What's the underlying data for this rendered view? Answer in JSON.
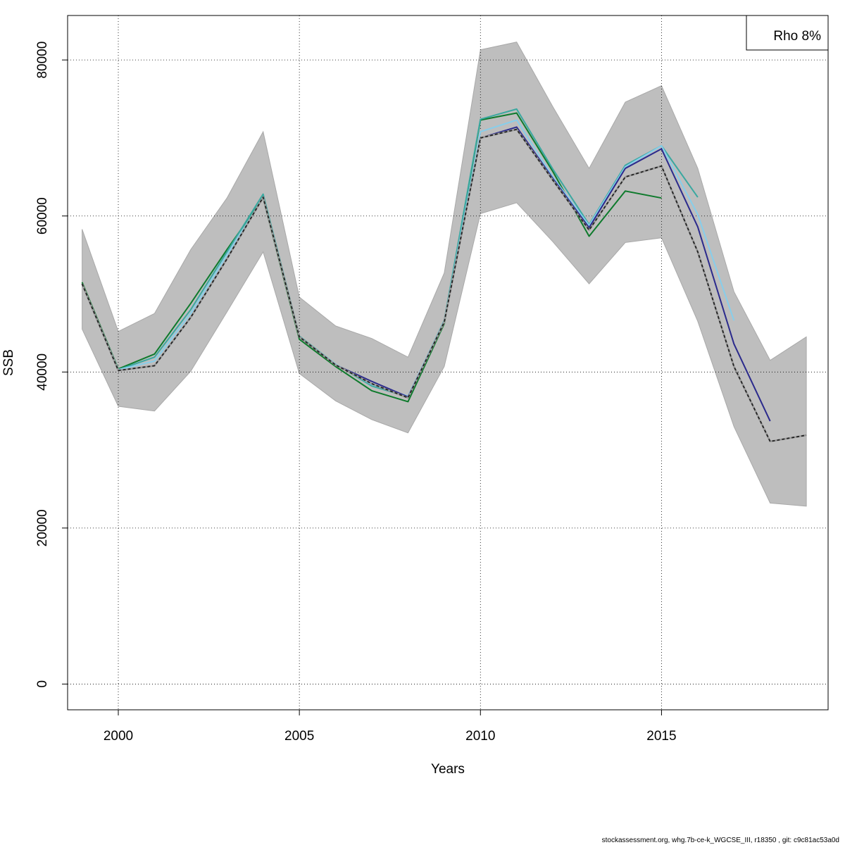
{
  "chart_data": {
    "type": "line",
    "title": "",
    "xlabel": "Years",
    "ylabel": "SSB",
    "xlim": [
      1998.6,
      2019.6
    ],
    "ylim": [
      -3300,
      85700
    ],
    "x_ticks": [
      2000,
      2005,
      2010,
      2015
    ],
    "y_ticks": [
      0,
      20000,
      40000,
      60000,
      80000
    ],
    "grid": true,
    "legend": {
      "position": "top-right",
      "text": "Rho 8%"
    },
    "band": {
      "x": [
        1999,
        2000,
        2001,
        2002,
        2003,
        2004,
        2005,
        2006,
        2007,
        2008,
        2009,
        2010,
        2011,
        2012,
        2013,
        2014,
        2015,
        2016,
        2017,
        2018,
        2019
      ],
      "upper": [
        58300,
        45200,
        47500,
        55700,
        62300,
        70800,
        49600,
        45900,
        44300,
        41900,
        52700,
        81300,
        82300,
        74000,
        66100,
        74600,
        76700,
        66100,
        50300,
        41500,
        44500
      ],
      "lower": [
        45500,
        35600,
        35000,
        40100,
        47700,
        55400,
        39800,
        36300,
        33900,
        32200,
        40700,
        60300,
        61700,
        56700,
        51300,
        56600,
        57200,
        46500,
        33000,
        23200,
        22800
      ]
    },
    "series": [
      {
        "color": "#0e7a2c",
        "x": [
          1999,
          2000,
          2001,
          2002,
          2003,
          2004,
          2005,
          2006,
          2007,
          2008,
          2009,
          2010,
          2011,
          2012,
          2013,
          2014,
          2015
        ],
        "values": [
          51500,
          40400,
          42300,
          48800,
          55700,
          62300,
          44200,
          40700,
          37600,
          36200,
          46200,
          72300,
          73200,
          65700,
          57400,
          63200,
          62300
        ]
      },
      {
        "color": "#3aa8a0",
        "x": [
          1999,
          2000,
          2001,
          2002,
          2003,
          2004,
          2005,
          2006,
          2007,
          2008,
          2009,
          2010,
          2011,
          2012,
          2013,
          2014,
          2015,
          2016
        ],
        "values": [
          51300,
          40300,
          41900,
          48000,
          55400,
          62800,
          44600,
          41000,
          38200,
          36800,
          46600,
          72400,
          73700,
          66000,
          58900,
          66500,
          69000,
          62400
        ]
      },
      {
        "color": "#87ceeb",
        "x": [
          1999,
          2000,
          2001,
          2002,
          2003,
          2004,
          2005,
          2006,
          2007,
          2008,
          2009,
          2010,
          2011,
          2012,
          2013,
          2014,
          2015,
          2016,
          2017
        ],
        "values": [
          51300,
          40300,
          41400,
          47500,
          55000,
          62400,
          44500,
          41000,
          38400,
          36900,
          46500,
          70800,
          72300,
          65000,
          58800,
          66300,
          69000,
          60200,
          46600
        ]
      },
      {
        "color": "#2b2a8c",
        "x": [
          1999,
          2000,
          2001,
          2002,
          2003,
          2004,
          2005,
          2006,
          2007,
          2008,
          2009,
          2010,
          2011,
          2012,
          2013,
          2014,
          2015,
          2016,
          2017,
          2018
        ],
        "values": [
          51300,
          40200,
          40800,
          47000,
          54500,
          62400,
          44500,
          40900,
          38800,
          36800,
          46400,
          70000,
          71400,
          64800,
          58500,
          66100,
          68600,
          58600,
          43600,
          33700
        ]
      },
      {
        "color": "#222222",
        "dashed": true,
        "x": [
          1999,
          2000,
          2001,
          2002,
          2003,
          2004,
          2005,
          2006,
          2007,
          2008,
          2009,
          2010,
          2011,
          2012,
          2013,
          2014,
          2015,
          2016,
          2017,
          2018,
          2019
        ],
        "values": [
          51300,
          40200,
          40800,
          47000,
          54500,
          62400,
          44500,
          40900,
          38500,
          36700,
          46400,
          70000,
          71100,
          64600,
          58200,
          65000,
          66400,
          55400,
          40700,
          31100,
          31900
        ]
      }
    ],
    "colors": {
      "band": "#bebebe",
      "grid": "#000000",
      "axis": "#000000"
    }
  },
  "footer": "stockassessment.org, whg.7b-ce-k_WGCSE_III, r18350 , git: c9c81ac53a0d"
}
